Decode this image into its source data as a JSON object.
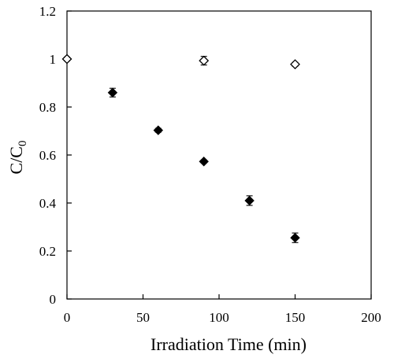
{
  "chart_data": {
    "type": "scatter",
    "xlabel": "Irradiation Time (min)",
    "ylabel_main": "C/C",
    "ylabel_sub": "0",
    "xlim": [
      0,
      200
    ],
    "ylim": [
      0,
      1.2
    ],
    "xticks": [
      0,
      50,
      100,
      150,
      200
    ],
    "yticks": [
      0,
      0.2,
      0.4,
      0.6,
      0.8,
      1,
      1.2
    ],
    "xtick_labels": [
      "0",
      "50",
      "100",
      "150",
      "200"
    ],
    "ytick_labels": [
      "0",
      "0.2",
      "0.4",
      "0.6",
      "0.8",
      "1",
      "1.2"
    ],
    "grid": false,
    "series": [
      {
        "marker": "filled-diamond",
        "color": "#000000",
        "x": [
          0,
          30,
          60,
          90,
          120,
          150
        ],
        "y": [
          1.0,
          0.86,
          0.703,
          0.573,
          0.41,
          0.255
        ],
        "yerr": [
          0.008,
          0.018,
          0.008,
          0.006,
          0.02,
          0.02
        ]
      },
      {
        "marker": "open-diamond",
        "color": "#000000",
        "x": [
          0,
          90,
          150
        ],
        "y": [
          1.0,
          0.993,
          0.978
        ],
        "yerr": [
          0.008,
          0.018,
          0.008
        ]
      }
    ]
  }
}
